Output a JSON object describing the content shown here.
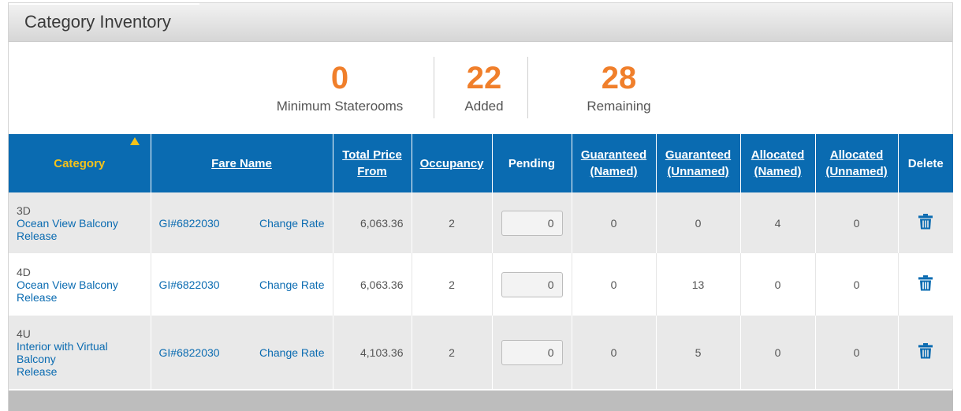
{
  "panel": {
    "title": "Category Inventory"
  },
  "summary": {
    "minimum": {
      "value": "0",
      "label": "Minimum Staterooms"
    },
    "added": {
      "value": "22",
      "label": "Added"
    },
    "remaining": {
      "value": "28",
      "label": "Remaining"
    }
  },
  "table": {
    "headers": {
      "category": "Category",
      "fare_name": "Fare Name",
      "total_price_1": "Total Price",
      "total_price_2": "From",
      "occupancy": "Occupancy",
      "pending": "Pending",
      "g_named_1": "Guaranteed",
      "g_named_2": "(Named)",
      "g_unnamed_1": "Guaranteed",
      "g_unnamed_2": "(Unnamed)",
      "a_named_1": "Allocated",
      "a_named_2": "(Named)",
      "a_unnamed_1": "Allocated",
      "a_unnamed_2": "(Unnamed)",
      "delete": "Delete"
    },
    "sort": {
      "column": "category",
      "direction": "ascending"
    },
    "rows": [
      {
        "code": "3D",
        "name": "Ocean View Balcony",
        "name2": "",
        "release": "Release",
        "fare": "GI#6822030",
        "change_rate": "Change Rate",
        "price": "6,063.36",
        "occupancy": "2",
        "pending": "0",
        "g_named": "0",
        "g_unnamed": "0",
        "a_named": "4",
        "a_unnamed": "0"
      },
      {
        "code": "4D",
        "name": "Ocean View Balcony",
        "name2": "",
        "release": "Release",
        "fare": "GI#6822030",
        "change_rate": "Change Rate",
        "price": "6,063.36",
        "occupancy": "2",
        "pending": "0",
        "g_named": "0",
        "g_unnamed": "13",
        "a_named": "0",
        "a_unnamed": "0"
      },
      {
        "code": "4U",
        "name": "Interior with Virtual",
        "name2": "Balcony",
        "release": "Release",
        "fare": "GI#6822030",
        "change_rate": "Change Rate",
        "price": "4,103.36",
        "occupancy": "2",
        "pending": "0",
        "g_named": "0",
        "g_unnamed": "5",
        "a_named": "0",
        "a_unnamed": "0"
      }
    ]
  },
  "icons": {
    "delete": "trash-icon",
    "sort": "sort-ascending-icon"
  },
  "colors": {
    "header_bg": "#0a6bb1",
    "accent_orange": "#f07f2b",
    "sort_yellow": "#f5c21a",
    "link_blue": "#0a6bb1"
  }
}
